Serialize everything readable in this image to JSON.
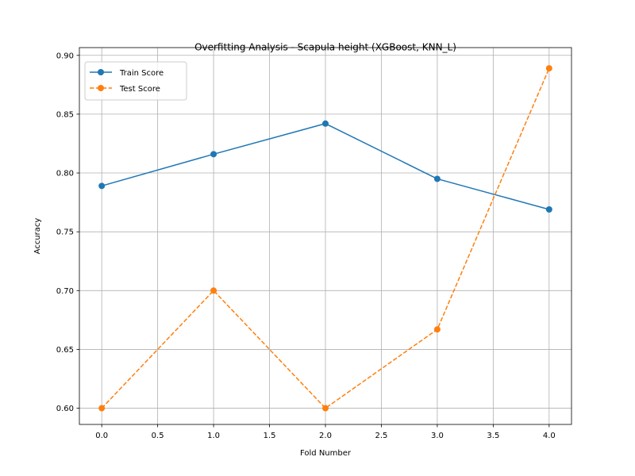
{
  "chart_data": {
    "type": "line",
    "title": "Overfitting Analysis - Scapula height (XGBoost, KNN_L)",
    "xlabel": "Fold Number",
    "ylabel": "Accuracy",
    "xlim": [
      -0.2,
      4.2
    ],
    "ylim": [
      0.5862,
      0.9066
    ],
    "x": [
      0,
      1,
      2,
      3,
      4
    ],
    "xticks": [
      0.0,
      0.5,
      1.0,
      1.5,
      2.0,
      2.5,
      3.0,
      3.5,
      4.0
    ],
    "xtick_labels": [
      "0.0",
      "0.5",
      "1.0",
      "1.5",
      "2.0",
      "2.5",
      "3.0",
      "3.5",
      "4.0"
    ],
    "yticks": [
      0.6,
      0.65,
      0.7,
      0.75,
      0.8,
      0.85,
      0.9
    ],
    "ytick_labels": [
      "0.60",
      "0.65",
      "0.70",
      "0.75",
      "0.80",
      "0.85",
      "0.90"
    ],
    "grid": true,
    "legend_position": "top-left",
    "series": [
      {
        "name": "Train Score",
        "values": [
          0.789,
          0.816,
          0.842,
          0.795,
          0.769
        ],
        "color": "#1f77b4",
        "linestyle": "solid",
        "marker": "circle"
      },
      {
        "name": "Test Score",
        "values": [
          0.6,
          0.7,
          0.6,
          0.667,
          0.889
        ],
        "color": "#ff7f0e",
        "linestyle": "dashed",
        "marker": "circle"
      }
    ]
  }
}
